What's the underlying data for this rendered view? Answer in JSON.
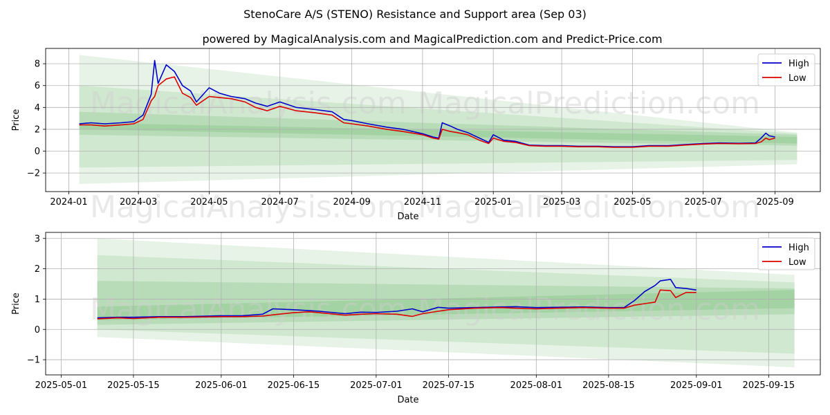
{
  "figure": {
    "title": "StenoCare A/S (STENO) Resistance and Support area (Sep 03)",
    "subtitle": "powered by MagicalAnalysis.com and MagicalPrediction.com and Predict-Price.com",
    "watermarks": [
      "MagicalAnalysis.com",
      "MagicalPrediction.com"
    ]
  },
  "colors": {
    "high": "#0000cc",
    "low": "#dd0000",
    "band": "#2e9a2e",
    "grid": "#b0b0b0"
  },
  "chart_data": [
    {
      "type": "line",
      "xlabel": "Date",
      "ylabel": "Price",
      "x_ticks": [
        "2024-01",
        "2024-03",
        "2024-05",
        "2024-07",
        "2024-09",
        "2024-11",
        "2025-01",
        "2025-03",
        "2025-05",
        "2025-07",
        "2025-09"
      ],
      "y_ticks": [
        -2,
        0,
        2,
        4,
        6,
        8
      ],
      "xlim": [
        "2023-12-12",
        "2025-10-10"
      ],
      "ylim": [
        -3.7,
        9.4
      ],
      "grid": true,
      "legend": "top-right",
      "bands": [
        {
          "x": [
            "2024-01-10",
            "2025-09-20"
          ],
          "upper": [
            8.8,
            1.7
          ],
          "lower": [
            -3.0,
            -1.2
          ],
          "opacity": 0.12
        },
        {
          "x": [
            "2024-01-10",
            "2025-09-20"
          ],
          "upper": [
            6.0,
            1.6
          ],
          "lower": [
            -1.5,
            -0.8
          ],
          "opacity": 0.12
        },
        {
          "x": [
            "2024-01-10",
            "2025-09-20"
          ],
          "upper": [
            3.6,
            1.5
          ],
          "lower": [
            1.5,
            0.5
          ],
          "opacity": 0.15
        },
        {
          "x": [
            "2024-01-10",
            "2025-09-20"
          ],
          "upper": [
            2.6,
            1.3
          ],
          "lower": [
            2.0,
            0.7
          ],
          "opacity": 0.15
        }
      ],
      "series": [
        {
          "name": "High",
          "x": [
            "2024-01-10",
            "2024-01-20",
            "2024-02-01",
            "2024-02-15",
            "2024-02-26",
            "2024-03-05",
            "2024-03-12",
            "2024-03-15",
            "2024-03-18",
            "2024-03-25",
            "2024-04-01",
            "2024-04-08",
            "2024-04-15",
            "2024-04-20",
            "2024-05-01",
            "2024-05-10",
            "2024-05-20",
            "2024-06-01",
            "2024-06-10",
            "2024-06-20",
            "2024-07-01",
            "2024-07-15",
            "2024-08-01",
            "2024-08-15",
            "2024-08-25",
            "2024-09-01",
            "2024-09-15",
            "2024-10-01",
            "2024-10-15",
            "2024-11-01",
            "2024-11-10",
            "2024-11-15",
            "2024-11-18",
            "2024-11-25",
            "2024-12-01",
            "2024-12-10",
            "2024-12-20",
            "2024-12-28",
            "2025-01-01",
            "2025-01-10",
            "2025-01-20",
            "2025-02-01",
            "2025-02-15",
            "2025-03-01",
            "2025-03-15",
            "2025-04-01",
            "2025-04-15",
            "2025-05-01",
            "2025-05-15",
            "2025-06-01",
            "2025-06-15",
            "2025-07-01",
            "2025-07-15",
            "2025-08-01",
            "2025-08-15",
            "2025-08-20",
            "2025-08-24",
            "2025-08-27",
            "2025-09-01"
          ],
          "values": [
            2.5,
            2.6,
            2.5,
            2.6,
            2.7,
            3.3,
            5.2,
            8.3,
            6.2,
            7.9,
            7.3,
            6.0,
            5.5,
            4.5,
            5.8,
            5.3,
            5.0,
            4.8,
            4.4,
            4.1,
            4.5,
            4.0,
            3.8,
            3.6,
            2.9,
            2.8,
            2.5,
            2.2,
            2.0,
            1.6,
            1.3,
            1.2,
            2.6,
            2.3,
            2.0,
            1.7,
            1.2,
            0.8,
            1.5,
            1.0,
            0.9,
            0.55,
            0.5,
            0.5,
            0.45,
            0.45,
            0.4,
            0.4,
            0.5,
            0.5,
            0.6,
            0.7,
            0.75,
            0.72,
            0.75,
            1.2,
            1.65,
            1.4,
            1.3
          ]
        },
        {
          "name": "Low",
          "x": [
            "2024-01-10",
            "2024-01-20",
            "2024-02-01",
            "2024-02-15",
            "2024-02-26",
            "2024-03-05",
            "2024-03-12",
            "2024-03-15",
            "2024-03-18",
            "2024-03-25",
            "2024-04-01",
            "2024-04-08",
            "2024-04-15",
            "2024-04-20",
            "2024-05-01",
            "2024-05-10",
            "2024-05-20",
            "2024-06-01",
            "2024-06-10",
            "2024-06-20",
            "2024-07-01",
            "2024-07-15",
            "2024-08-01",
            "2024-08-15",
            "2024-08-25",
            "2024-09-01",
            "2024-09-15",
            "2024-10-01",
            "2024-10-15",
            "2024-11-01",
            "2024-11-10",
            "2024-11-15",
            "2024-11-18",
            "2024-11-25",
            "2024-12-01",
            "2024-12-10",
            "2024-12-20",
            "2024-12-28",
            "2025-01-01",
            "2025-01-10",
            "2025-01-20",
            "2025-02-01",
            "2025-02-15",
            "2025-03-01",
            "2025-03-15",
            "2025-04-01",
            "2025-04-15",
            "2025-05-01",
            "2025-05-15",
            "2025-06-01",
            "2025-06-15",
            "2025-07-01",
            "2025-07-15",
            "2025-08-01",
            "2025-08-15",
            "2025-08-20",
            "2025-08-24",
            "2025-08-27",
            "2025-09-01"
          ],
          "values": [
            2.4,
            2.4,
            2.3,
            2.4,
            2.5,
            2.9,
            4.6,
            5.0,
            6.0,
            6.6,
            6.8,
            5.3,
            4.9,
            4.2,
            5.0,
            4.9,
            4.8,
            4.5,
            4.0,
            3.7,
            4.1,
            3.7,
            3.5,
            3.3,
            2.6,
            2.5,
            2.3,
            2.0,
            1.8,
            1.5,
            1.2,
            1.1,
            2.0,
            1.8,
            1.7,
            1.5,
            1.0,
            0.7,
            1.2,
            0.9,
            0.8,
            0.5,
            0.45,
            0.45,
            0.4,
            0.4,
            0.35,
            0.35,
            0.45,
            0.45,
            0.55,
            0.65,
            0.7,
            0.68,
            0.7,
            0.85,
            1.2,
            1.05,
            1.2
          ]
        }
      ]
    },
    {
      "type": "line",
      "xlabel": "Date",
      "ylabel": "Price",
      "x_ticks": [
        "2025-05-01",
        "2025-05-15",
        "2025-06-01",
        "2025-06-15",
        "2025-07-01",
        "2025-07-15",
        "2025-08-01",
        "2025-08-15",
        "2025-09-01",
        "2025-09-15"
      ],
      "y_ticks": [
        -1,
        0,
        1,
        2,
        3
      ],
      "xlim": [
        "2025-04-28",
        "2025-09-25"
      ],
      "ylim": [
        -1.5,
        3.2
      ],
      "grid": true,
      "legend": "top-right",
      "bands": [
        {
          "x": [
            "2025-05-08",
            "2025-09-20"
          ],
          "upper": [
            3.0,
            1.8
          ],
          "lower": [
            -0.25,
            -1.25
          ],
          "opacity": 0.12
        },
        {
          "x": [
            "2025-05-08",
            "2025-09-20"
          ],
          "upper": [
            2.45,
            1.55
          ],
          "lower": [
            0.0,
            -0.8
          ],
          "opacity": 0.12
        },
        {
          "x": [
            "2025-05-08",
            "2025-09-20"
          ],
          "upper": [
            1.6,
            1.35
          ],
          "lower": [
            0.15,
            0.5
          ],
          "opacity": 0.15
        },
        {
          "x": [
            "2025-05-08",
            "2025-09-20"
          ],
          "upper": [
            0.75,
            1.3
          ],
          "lower": [
            0.3,
            0.7
          ],
          "opacity": 0.15
        }
      ],
      "series": [
        {
          "name": "High",
          "x": [
            "2025-05-08",
            "2025-05-12",
            "2025-05-15",
            "2025-05-20",
            "2025-05-25",
            "2025-06-01",
            "2025-06-05",
            "2025-06-09",
            "2025-06-11",
            "2025-06-15",
            "2025-06-18",
            "2025-06-20",
            "2025-06-25",
            "2025-06-28",
            "2025-07-01",
            "2025-07-05",
            "2025-07-08",
            "2025-07-10",
            "2025-07-13",
            "2025-07-15",
            "2025-07-20",
            "2025-07-25",
            "2025-07-28",
            "2025-08-01",
            "2025-08-05",
            "2025-08-10",
            "2025-08-15",
            "2025-08-18",
            "2025-08-20",
            "2025-08-22",
            "2025-08-24",
            "2025-08-25",
            "2025-08-27",
            "2025-08-28",
            "2025-08-30",
            "2025-09-01"
          ],
          "values": [
            0.38,
            0.4,
            0.4,
            0.42,
            0.42,
            0.45,
            0.45,
            0.5,
            0.68,
            0.65,
            0.62,
            0.6,
            0.52,
            0.57,
            0.56,
            0.6,
            0.68,
            0.58,
            0.73,
            0.7,
            0.72,
            0.74,
            0.75,
            0.72,
            0.73,
            0.74,
            0.72,
            0.72,
            0.95,
            1.25,
            1.45,
            1.6,
            1.65,
            1.38,
            1.35,
            1.3
          ]
        },
        {
          "name": "Low",
          "x": [
            "2025-05-08",
            "2025-05-12",
            "2025-05-15",
            "2025-05-20",
            "2025-05-25",
            "2025-06-01",
            "2025-06-05",
            "2025-06-09",
            "2025-06-11",
            "2025-06-15",
            "2025-06-18",
            "2025-06-20",
            "2025-06-25",
            "2025-06-28",
            "2025-07-01",
            "2025-07-05",
            "2025-07-08",
            "2025-07-10",
            "2025-07-13",
            "2025-07-15",
            "2025-07-20",
            "2025-07-25",
            "2025-07-28",
            "2025-08-01",
            "2025-08-05",
            "2025-08-10",
            "2025-08-15",
            "2025-08-18",
            "2025-08-20",
            "2025-08-22",
            "2025-08-24",
            "2025-08-25",
            "2025-08-27",
            "2025-08-28",
            "2025-08-30",
            "2025-09-01"
          ],
          "values": [
            0.35,
            0.38,
            0.36,
            0.4,
            0.4,
            0.42,
            0.42,
            0.44,
            0.48,
            0.55,
            0.58,
            0.55,
            0.47,
            0.5,
            0.52,
            0.5,
            0.43,
            0.52,
            0.6,
            0.65,
            0.7,
            0.72,
            0.7,
            0.68,
            0.7,
            0.72,
            0.7,
            0.7,
            0.8,
            0.85,
            0.9,
            1.3,
            1.28,
            1.05,
            1.22,
            1.22
          ]
        }
      ]
    }
  ]
}
